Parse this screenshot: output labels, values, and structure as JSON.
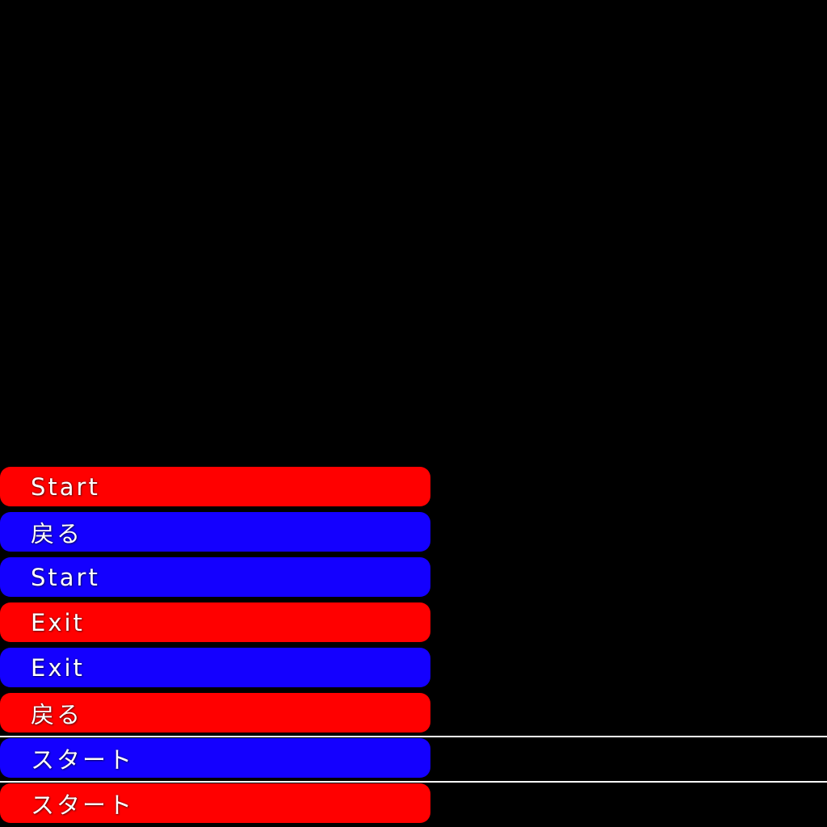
{
  "app": {
    "background_color": "#000000"
  },
  "menu": {
    "buttons": [
      {
        "label": "Start",
        "color": "#ff0000",
        "text_color": "#ffffff"
      },
      {
        "label": "戻る",
        "color": "#1400ff",
        "text_color": "#ffffff"
      },
      {
        "label": "Start",
        "color": "#1400ff",
        "text_color": "#ffffff"
      },
      {
        "label": "Exit",
        "color": "#ff0000",
        "text_color": "#ffffff"
      },
      {
        "label": "Exit",
        "color": "#1400ff",
        "text_color": "#ffffff"
      },
      {
        "label": "戻る",
        "color": "#ff0000",
        "text_color": "#ffffff"
      },
      {
        "label": "スタート",
        "color": "#1400ff",
        "text_color": "#ffffff"
      },
      {
        "label": "スタート",
        "color": "#ff0000",
        "text_color": "#ffffff"
      }
    ],
    "separators": [
      {
        "color": "#ffffff"
      },
      {
        "color": "#ffffff"
      }
    ]
  }
}
